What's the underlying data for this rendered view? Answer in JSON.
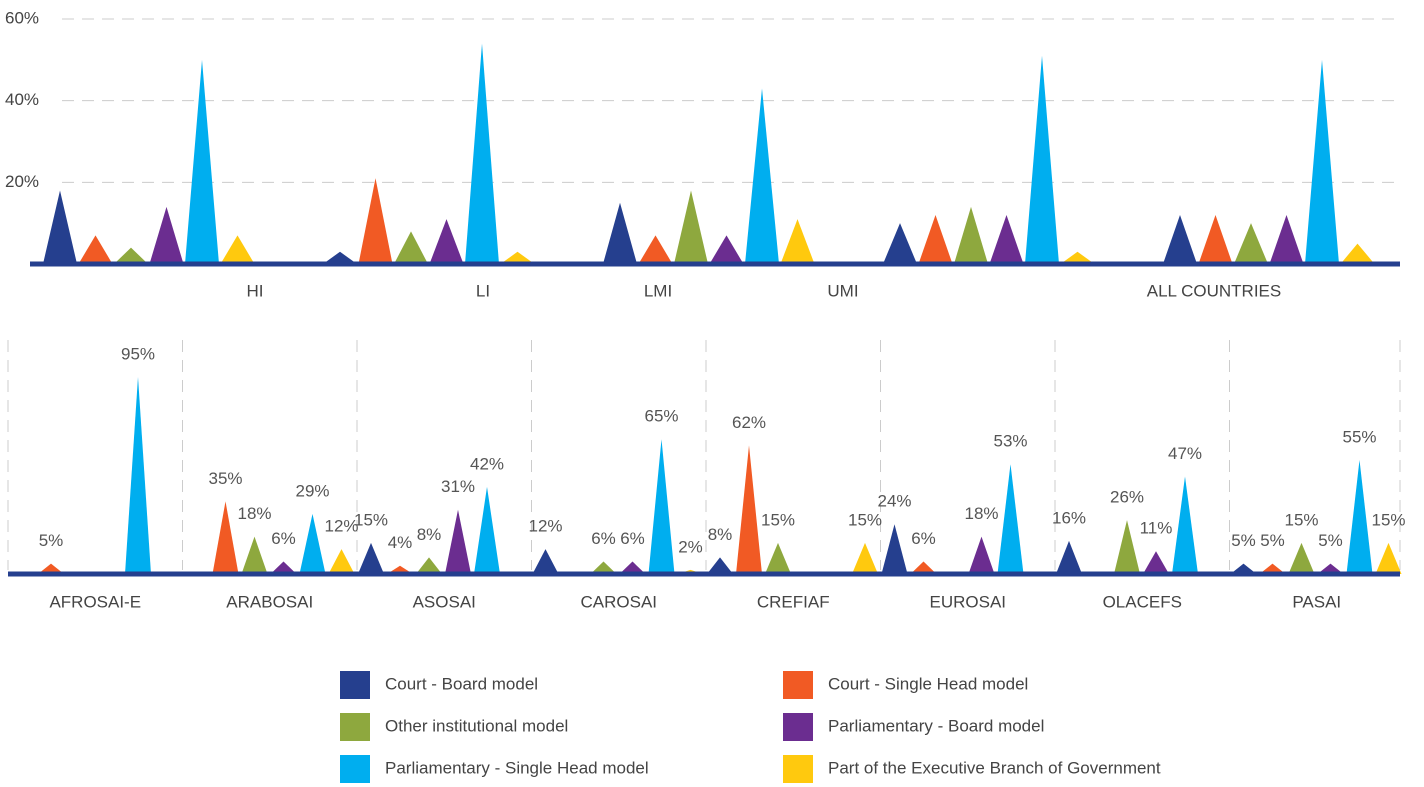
{
  "chart_data": [
    {
      "type": "triangle",
      "categories": [
        "HI",
        "LI",
        "LMI",
        "UMI",
        "ALL COUNTRIES"
      ],
      "ylim": [
        0,
        60
      ],
      "yticks": [
        {
          "value": 20,
          "label": "20%"
        },
        {
          "value": 40,
          "label": "40%"
        },
        {
          "value": 60,
          "label": "60%"
        }
      ],
      "grid": true,
      "series": [
        {
          "name": "Court - Board model",
          "color": "#253f8e",
          "values": [
            18,
            3,
            15,
            10,
            12
          ]
        },
        {
          "name": "Court - Single Head model",
          "color": "#f15a24",
          "values": [
            7,
            21,
            7,
            12,
            12
          ]
        },
        {
          "name": "Other institutional model",
          "color": "#8ea83e",
          "values": [
            4,
            8,
            18,
            14,
            10
          ]
        },
        {
          "name": "Parliamentary - Board model",
          "color": "#6b2d90",
          "values": [
            14,
            11,
            7,
            12,
            12
          ]
        },
        {
          "name": "Parliamentary - Single Head model",
          "color": "#00aeef",
          "values": [
            50,
            54,
            43,
            51,
            50
          ]
        },
        {
          "name": "Part of the Executive Branch of Government",
          "color": "#ffc90e",
          "values": [
            7,
            3,
            11,
            3,
            5
          ]
        }
      ]
    },
    {
      "type": "triangle",
      "categories": [
        "AFROSAI-E",
        "ARABOSAI",
        "ASOSAI",
        "CAROSAI",
        "CREFIAF",
        "EUROSAI",
        "OLACEFS",
        "PASAI"
      ],
      "series": [
        {
          "values": [
            null,
            null,
            15,
            12,
            8,
            24,
            16,
            5
          ],
          "value_labels": [
            null,
            null,
            "15%",
            "12%",
            "8%",
            "24%",
            "16%",
            "5%"
          ]
        },
        {
          "values": [
            5,
            35,
            4,
            null,
            62,
            6,
            null,
            5
          ],
          "value_labels": [
            "5%",
            "35%",
            "4%",
            null,
            "62%",
            "6%",
            null,
            "5%"
          ]
        },
        {
          "values": [
            null,
            18,
            8,
            6,
            15,
            null,
            26,
            15
          ],
          "value_labels": [
            null,
            "18%",
            "8%",
            "6%",
            "15%",
            null,
            "26%",
            "15%"
          ]
        },
        {
          "values": [
            null,
            6,
            31,
            6,
            null,
            18,
            11,
            5
          ],
          "value_labels": [
            null,
            "6%",
            "31%",
            "6%",
            null,
            "18%",
            "11%",
            "5%"
          ]
        },
        {
          "values": [
            95,
            29,
            42,
            65,
            null,
            53,
            47,
            55
          ],
          "value_labels": [
            "95%",
            "29%",
            "42%",
            "65%",
            null,
            "53%",
            "47%",
            "55%"
          ]
        },
        {
          "values": [
            null,
            12,
            null,
            2,
            15,
            null,
            null,
            15
          ],
          "value_labels": [
            null,
            "12%",
            null,
            "2%",
            "15%",
            null,
            null,
            "15%"
          ]
        }
      ]
    }
  ]
}
